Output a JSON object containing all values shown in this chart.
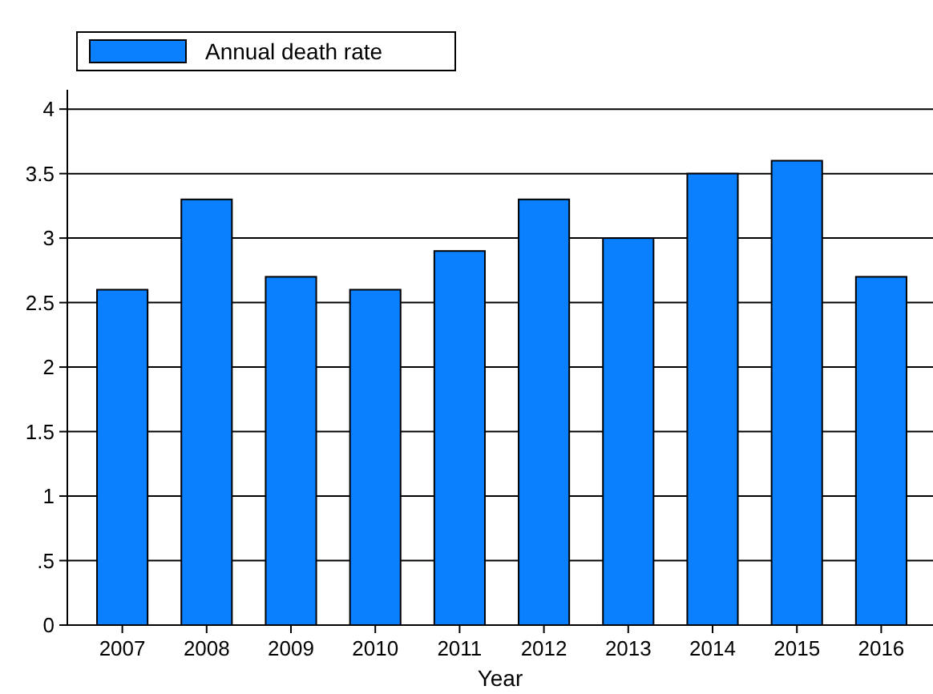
{
  "chart_data": {
    "type": "bar",
    "xlabel": "Year",
    "categories": [
      "2007",
      "2008",
      "2009",
      "2010",
      "2011",
      "2012",
      "2013",
      "2014",
      "2015",
      "2016"
    ],
    "series": [
      {
        "name": "Annual death rate",
        "color": "#0a80ff",
        "values": [
          2.6,
          3.3,
          2.7,
          2.6,
          2.9,
          3.3,
          3.0,
          3.5,
          3.6,
          2.7
        ]
      }
    ],
    "ylim": [
      0,
      4.15
    ],
    "yticks": [
      0,
      {
        "value": 0.5,
        "label": ".5"
      },
      1,
      1.5,
      2,
      2.5,
      3,
      3.5,
      4
    ],
    "grid": "y",
    "legend": "top left"
  }
}
